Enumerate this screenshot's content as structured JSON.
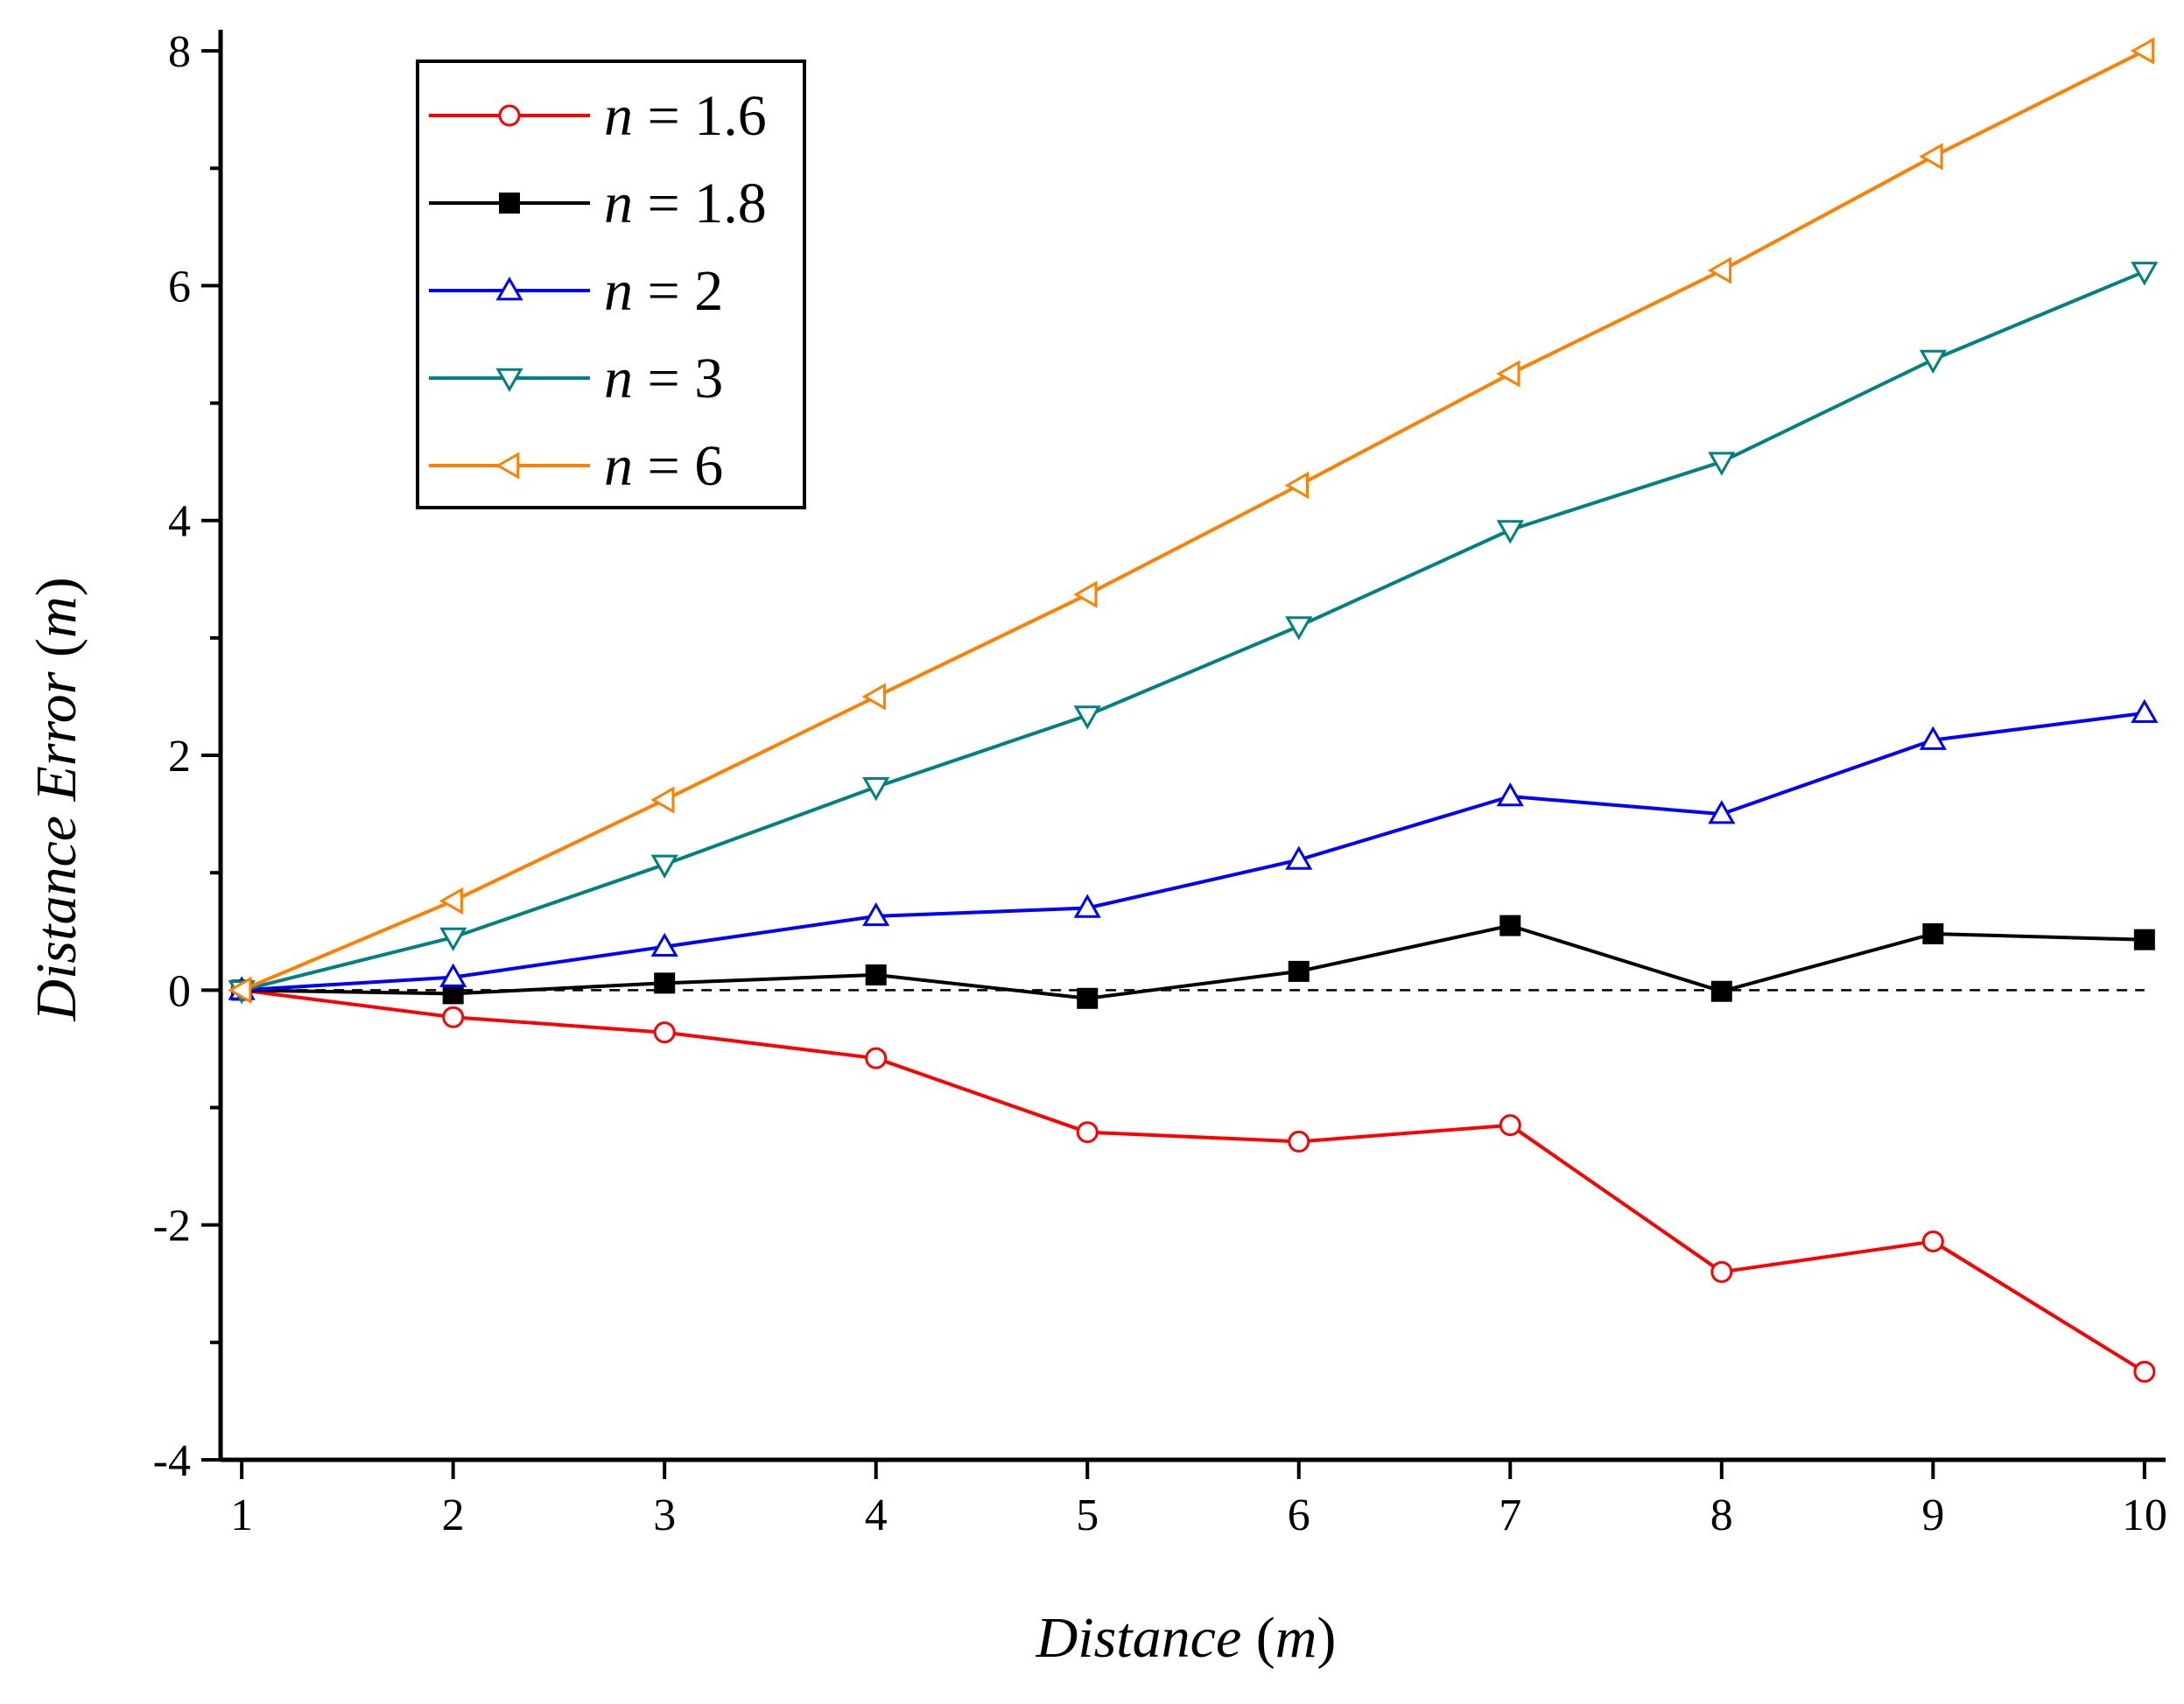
{
  "chart_data": {
    "type": "line",
    "title": "",
    "xlabel_main": "Distance",
    "xlabel_unit": "m",
    "ylabel_main": "Distance Error",
    "ylabel_unit": "m",
    "xlim": [
      0.9,
      10.1
    ],
    "ylim": [
      -4,
      8.15
    ],
    "x": [
      1,
      2,
      3,
      4,
      5,
      6,
      7,
      8,
      9,
      10
    ],
    "xticks": [
      1,
      2,
      3,
      4,
      5,
      6,
      7,
      8,
      9,
      10
    ],
    "yticks": [
      -4,
      -2,
      0,
      2,
      4,
      6,
      8
    ],
    "xtick_labels": [
      "1",
      "2",
      "3",
      "4",
      "5",
      "6",
      "7",
      "8",
      "9",
      "10"
    ],
    "ytick_labels": [
      "-4",
      "-2",
      "0",
      "2",
      "4",
      "6",
      "8"
    ],
    "reference_line": {
      "y": 0,
      "style": "dashed",
      "color": "#000000"
    },
    "legend_position": "top-left",
    "series": [
      {
        "name_var": "n",
        "name_rest": " = 1.6",
        "color": "#ff0000",
        "marker": "circle-open",
        "values": [
          0,
          -0.23,
          -0.36,
          -0.58,
          -1.21,
          -1.29,
          -1.15,
          -2.4,
          -2.14,
          -3.25
        ]
      },
      {
        "name_var": "n",
        "name_rest": " = 1.8",
        "color": "#000000",
        "marker": "square-filled",
        "values": [
          0,
          -0.03,
          0.06,
          0.13,
          -0.07,
          0.16,
          0.55,
          -0.01,
          0.48,
          0.43
        ]
      },
      {
        "name_var": "n",
        "name_rest": " = 2",
        "color": "#0000ff",
        "marker": "triangle-up-open",
        "values": [
          0,
          0.11,
          0.37,
          0.63,
          0.7,
          1.11,
          1.65,
          1.5,
          2.13,
          2.36
        ]
      },
      {
        "name_var": "n",
        "name_rest": " = 3",
        "color": "#008080",
        "marker": "triangle-down-open",
        "values": [
          0,
          0.45,
          1.07,
          1.73,
          2.34,
          3.1,
          3.92,
          4.5,
          5.37,
          6.12
        ]
      },
      {
        "name_var": "n",
        "name_rest": " = 6",
        "color": "#ff8000",
        "marker": "triangle-left-open",
        "values": [
          0,
          0.76,
          1.62,
          2.5,
          3.37,
          4.3,
          5.25,
          6.13,
          7.1,
          8.0
        ]
      }
    ]
  }
}
